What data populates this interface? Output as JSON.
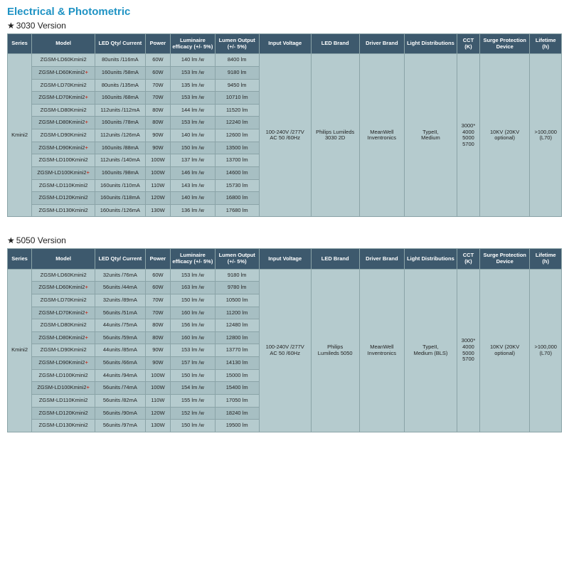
{
  "heading": "Electrical & Photometric",
  "tables": [
    {
      "version_label": "3030 Version",
      "star": "★",
      "headers": [
        "Series",
        "Model",
        "LED Qty/ Current",
        "Power",
        "Luminaire efficacy (+/- 5%)",
        "Lumen Output (+/- 5%)",
        "Input Voltage",
        "LED Brand",
        "Driver Brand",
        "Light Distributions",
        "CCT (K)",
        "Surge Protection Device",
        "Lifetime (h)"
      ],
      "series": "Kmini2",
      "shared": {
        "input_voltage": "100-240V /277V AC 50 /60Hz",
        "led_brand": "Philips Lumileds 3030 2D",
        "driver_brand": "MeanWell Inventronics",
        "light_dist": "TypeII, Medium",
        "cct": "3000* 4000 5000 5700",
        "surge": "10KV (20KV optional)",
        "lifetime": ">100,000 (L70)"
      },
      "rows": [
        {
          "model": "ZGSM-LD60Kmini2",
          "plus": false,
          "led": "80units /116mA",
          "power": "60W",
          "eff": "140 lm /w",
          "lumen": "8400 lm"
        },
        {
          "model": "ZGSM-LD60Kmini2",
          "plus": true,
          "led": "160units /58mA",
          "power": "60W",
          "eff": "153 lm /w",
          "lumen": "9180 lm"
        },
        {
          "model": "ZGSM-LD70Kmini2",
          "plus": false,
          "led": "80units /135mA",
          "power": "70W",
          "eff": "135 lm /w",
          "lumen": "9450 lm"
        },
        {
          "model": "ZGSM-LD70Kmini2",
          "plus": true,
          "led": "160units /68mA",
          "power": "70W",
          "eff": "153 lm /w",
          "lumen": "10710 lm"
        },
        {
          "model": "ZGSM-LD80Kmini2",
          "plus": false,
          "led": "112units /112mA",
          "power": "80W",
          "eff": "144 lm /w",
          "lumen": "11520 lm"
        },
        {
          "model": "ZGSM-LD80Kmini2",
          "plus": true,
          "led": "160units /78mA",
          "power": "80W",
          "eff": "153 lm /w",
          "lumen": "12240 lm"
        },
        {
          "model": "ZGSM-LD90Kmini2",
          "plus": false,
          "led": "112units /126mA",
          "power": "90W",
          "eff": "140 lm /w",
          "lumen": "12600 lm"
        },
        {
          "model": "ZGSM-LD90Kmini2",
          "plus": true,
          "led": "160units /88mA",
          "power": "90W",
          "eff": "150 lm /w",
          "lumen": "13500 lm"
        },
        {
          "model": "ZGSM-LD100Kmini2",
          "plus": false,
          "led": "112units /140mA",
          "power": "100W",
          "eff": "137 lm /w",
          "lumen": "13700 lm"
        },
        {
          "model": "ZGSM-LD100Kmini2",
          "plus": true,
          "led": "160units /98mA",
          "power": "100W",
          "eff": "146 lm /w",
          "lumen": "14600 lm"
        },
        {
          "model": "ZGSM-LD110Kmini2",
          "plus": false,
          "led": "160units /110mA",
          "power": "110W",
          "eff": "143 lm /w",
          "lumen": "15730 lm"
        },
        {
          "model": "ZGSM-LD120Kmini2",
          "plus": false,
          "led": "160units /118mA",
          "power": "120W",
          "eff": "140 lm /w",
          "lumen": "16800 lm"
        },
        {
          "model": "ZGSM-LD130Kmini2",
          "plus": false,
          "led": "160units /126mA",
          "power": "130W",
          "eff": "136 lm /w",
          "lumen": "17680 lm"
        }
      ]
    },
    {
      "version_label": "5050 Version",
      "star": "★",
      "headers": [
        "Series",
        "Model",
        "LED Qty/ Current",
        "Power",
        "Luminaire efficacy (+/- 5%)",
        "Lumen Output (+/- 5%)",
        "Input Voltage",
        "LED Brand",
        "Driver Brand",
        "Light Distributions",
        "CCT (K)",
        "Surge Protection Device",
        "Lifetime (h)"
      ],
      "series": "Kmini2",
      "shared": {
        "input_voltage": "100-240V /277V AC 50 /60Hz",
        "led_brand": "Philips Lumileds 5050",
        "driver_brand": "MeanWell Inventronics",
        "light_dist": "TypeII, Medium (BLS)",
        "cct": "3000* 4000 5000 5700",
        "surge": "10KV (20KV optional)",
        "lifetime": ">100,000 (L70)"
      },
      "rows": [
        {
          "model": "ZGSM-LD60Kmini2",
          "plus": false,
          "led": "32units /76mA",
          "power": "60W",
          "eff": "153 lm /w",
          "lumen": "9180 lm"
        },
        {
          "model": "ZGSM-LD60Kmini2",
          "plus": true,
          "led": "56units /44mA",
          "power": "60W",
          "eff": "163 lm /w",
          "lumen": "9780 lm"
        },
        {
          "model": "ZGSM-LD70Kmini2",
          "plus": false,
          "led": "32units /89mA",
          "power": "70W",
          "eff": "150 lm /w",
          "lumen": "10500 lm"
        },
        {
          "model": "ZGSM-LD70Kmini2",
          "plus": true,
          "led": "56units /51mA",
          "power": "70W",
          "eff": "160 lm /w",
          "lumen": "11200 lm"
        },
        {
          "model": "ZGSM-LD80Kmini2",
          "plus": false,
          "led": "44units /75mA",
          "power": "80W",
          "eff": "156 lm /w",
          "lumen": "12480 lm"
        },
        {
          "model": "ZGSM-LD80Kmini2",
          "plus": true,
          "led": "56units /59mA",
          "power": "80W",
          "eff": "160 lm /w",
          "lumen": "12800 lm"
        },
        {
          "model": "ZGSM-LD90Kmini2",
          "plus": false,
          "led": "44units /85mA",
          "power": "90W",
          "eff": "153 lm /w",
          "lumen": "13770 lm"
        },
        {
          "model": "ZGSM-LD90Kmini2",
          "plus": true,
          "led": "56units /66mA",
          "power": "90W",
          "eff": "157 lm /w",
          "lumen": "14130 lm"
        },
        {
          "model": "ZGSM-LD100Kmini2",
          "plus": false,
          "led": "44units /94mA",
          "power": "100W",
          "eff": "150 lm /w",
          "lumen": "15000 lm"
        },
        {
          "model": "ZGSM-LD100Kmini2",
          "plus": true,
          "led": "56units /74mA",
          "power": "100W",
          "eff": "154 lm /w",
          "lumen": "15400 lm"
        },
        {
          "model": "ZGSM-LD110Kmini2",
          "plus": false,
          "led": "56units /82mA",
          "power": "110W",
          "eff": "155 lm /w",
          "lumen": "17050 lm"
        },
        {
          "model": "ZGSM-LD120Kmini2",
          "plus": false,
          "led": "56units /90mA",
          "power": "120W",
          "eff": "152 lm /w",
          "lumen": "18240 lm"
        },
        {
          "model": "ZGSM-LD130Kmini2",
          "plus": false,
          "led": "56units /97mA",
          "power": "130W",
          "eff": "150 lm /w",
          "lumen": "19500 lm"
        }
      ]
    }
  ],
  "colors": {
    "header_bg": "#3d596d",
    "cell_bg": "#b5cbce",
    "cell_alt_bg": "#a7bfc3",
    "border": "#8aa3a7",
    "title": "#1f93c4",
    "plus": "#c0392b"
  }
}
